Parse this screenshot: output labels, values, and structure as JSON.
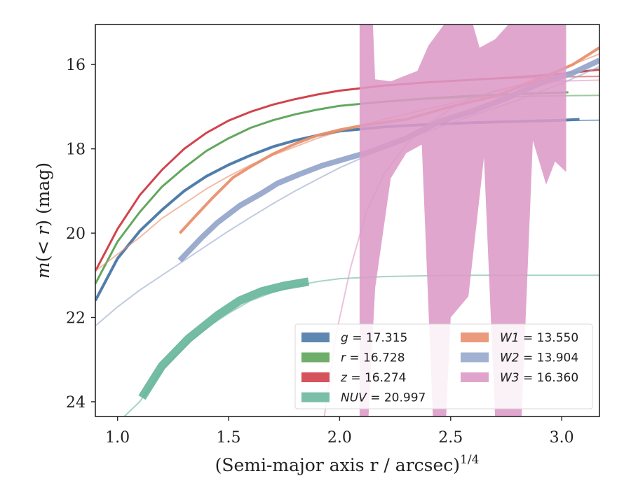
{
  "chart_data": {
    "type": "line",
    "title": "",
    "xlabel": "(Semi-major axis r / arcsec)",
    "xlabel_exponent": "1/4",
    "ylabel_prefix": "m(",
    "ylabel_math": "< r",
    "ylabel_suffix": ") (mag)",
    "xlim": [
      0.9,
      3.17
    ],
    "ylim": [
      24.35,
      15.05
    ],
    "y_inverted": true,
    "grid": false,
    "legend_placement": "lower-right",
    "x_ticks": [
      {
        "value": 1.0,
        "label": "1.0"
      },
      {
        "value": 1.5,
        "label": "1.5"
      },
      {
        "value": 2.0,
        "label": "2.0"
      },
      {
        "value": 2.5,
        "label": "2.5"
      },
      {
        "value": 3.0,
        "label": "3.0"
      }
    ],
    "y_ticks": [
      {
        "value": 16,
        "label": "16"
      },
      {
        "value": 18,
        "label": "18"
      },
      {
        "value": 20,
        "label": "20"
      },
      {
        "value": 22,
        "label": "22"
      },
      {
        "value": 24,
        "label": "24"
      }
    ],
    "legend_columns": [
      [
        "g",
        "r",
        "z",
        "NUV"
      ],
      [
        "W1",
        "W2",
        "W3"
      ]
    ],
    "series": [
      {
        "key": "g",
        "band": "g",
        "value": "17.315",
        "color": "#4c7aa8",
        "model": [
          [
            0.9,
            21.6
          ],
          [
            1.0,
            20.6
          ],
          [
            1.1,
            19.95
          ],
          [
            1.2,
            19.45
          ],
          [
            1.3,
            19.0
          ],
          [
            1.4,
            18.65
          ],
          [
            1.5,
            18.38
          ],
          [
            1.6,
            18.15
          ],
          [
            1.7,
            17.95
          ],
          [
            1.8,
            17.8
          ],
          [
            1.9,
            17.68
          ],
          [
            2.0,
            17.58
          ],
          [
            2.2,
            17.48
          ],
          [
            2.4,
            17.42
          ],
          [
            2.6,
            17.38
          ],
          [
            2.8,
            17.35
          ],
          [
            3.0,
            17.33
          ],
          [
            3.17,
            17.32
          ]
        ],
        "data_band": [
          [
            0.9,
            21.6
          ],
          [
            1.0,
            20.6
          ],
          [
            1.1,
            19.95
          ],
          [
            1.2,
            19.45
          ],
          [
            1.3,
            19.0
          ],
          [
            1.4,
            18.65
          ],
          [
            1.5,
            18.38
          ],
          [
            1.6,
            18.15
          ],
          [
            1.7,
            17.95
          ],
          [
            1.8,
            17.8
          ],
          [
            1.9,
            17.68
          ],
          [
            2.0,
            17.58
          ],
          [
            2.2,
            17.48
          ],
          [
            2.4,
            17.42
          ],
          [
            2.6,
            17.38
          ],
          [
            2.8,
            17.35
          ],
          [
            3.0,
            17.32
          ],
          [
            3.08,
            17.3
          ]
        ],
        "data_width": 4
      },
      {
        "key": "r",
        "band": "r",
        "value": "16.728",
        "color": "#5fa55a",
        "model": [
          [
            0.9,
            21.2
          ],
          [
            1.0,
            20.2
          ],
          [
            1.1,
            19.5
          ],
          [
            1.2,
            18.9
          ],
          [
            1.3,
            18.45
          ],
          [
            1.4,
            18.05
          ],
          [
            1.5,
            17.75
          ],
          [
            1.6,
            17.5
          ],
          [
            1.7,
            17.32
          ],
          [
            1.8,
            17.18
          ],
          [
            1.9,
            17.07
          ],
          [
            2.0,
            16.98
          ],
          [
            2.2,
            16.88
          ],
          [
            2.4,
            16.82
          ],
          [
            2.6,
            16.78
          ],
          [
            2.8,
            16.76
          ],
          [
            3.0,
            16.74
          ],
          [
            3.17,
            16.73
          ]
        ],
        "data_band": [
          [
            0.9,
            21.2
          ],
          [
            1.0,
            20.2
          ],
          [
            1.1,
            19.5
          ],
          [
            1.2,
            18.9
          ],
          [
            1.3,
            18.45
          ],
          [
            1.4,
            18.05
          ],
          [
            1.5,
            17.75
          ],
          [
            1.6,
            17.5
          ],
          [
            1.7,
            17.32
          ],
          [
            1.8,
            17.18
          ],
          [
            1.9,
            17.07
          ],
          [
            2.0,
            16.98
          ],
          [
            2.2,
            16.88
          ],
          [
            2.4,
            16.8
          ],
          [
            2.6,
            16.74
          ],
          [
            2.8,
            16.7
          ],
          [
            3.03,
            16.66
          ]
        ],
        "data_width": 3
      },
      {
        "key": "z",
        "band": "z",
        "value": "16.274",
        "color": "#d0404a",
        "model": [
          [
            0.9,
            20.9
          ],
          [
            1.0,
            19.9
          ],
          [
            1.1,
            19.1
          ],
          [
            1.2,
            18.5
          ],
          [
            1.3,
            18.0
          ],
          [
            1.4,
            17.62
          ],
          [
            1.5,
            17.33
          ],
          [
            1.6,
            17.12
          ],
          [
            1.7,
            16.95
          ],
          [
            1.8,
            16.82
          ],
          [
            1.9,
            16.71
          ],
          [
            2.0,
            16.62
          ],
          [
            2.2,
            16.5
          ],
          [
            2.4,
            16.42
          ],
          [
            2.6,
            16.36
          ],
          [
            2.8,
            16.32
          ],
          [
            3.0,
            16.29
          ],
          [
            3.17,
            16.28
          ]
        ],
        "data_band": [
          [
            0.9,
            20.9
          ],
          [
            1.0,
            19.9
          ],
          [
            1.1,
            19.1
          ],
          [
            1.2,
            18.5
          ],
          [
            1.3,
            18.0
          ],
          [
            1.4,
            17.62
          ],
          [
            1.5,
            17.33
          ],
          [
            1.6,
            17.12
          ],
          [
            1.7,
            16.95
          ],
          [
            1.8,
            16.82
          ],
          [
            1.9,
            16.71
          ],
          [
            2.0,
            16.62
          ],
          [
            2.2,
            16.5
          ],
          [
            2.4,
            16.42
          ],
          [
            2.6,
            16.36
          ],
          [
            2.8,
            16.3
          ],
          [
            3.0,
            16.22
          ],
          [
            3.17,
            16.12
          ]
        ],
        "data_width": 3
      },
      {
        "key": "NUV",
        "band": "NUV",
        "value": "20.997",
        "color": "#6db89e",
        "model": [
          [
            1.02,
            24.4
          ],
          [
            1.1,
            24.0
          ],
          [
            1.2,
            23.25
          ],
          [
            1.3,
            22.7
          ],
          [
            1.4,
            22.25
          ],
          [
            1.5,
            21.9
          ],
          [
            1.6,
            21.6
          ],
          [
            1.7,
            21.4
          ],
          [
            1.8,
            21.25
          ],
          [
            1.9,
            21.15
          ],
          [
            2.0,
            21.08
          ],
          [
            2.2,
            21.03
          ],
          [
            2.4,
            21.01
          ],
          [
            2.6,
            21.0
          ],
          [
            3.17,
            21.0
          ]
        ],
        "data_band": [
          [
            1.11,
            23.9
          ],
          [
            1.2,
            23.15
          ],
          [
            1.32,
            22.5
          ],
          [
            1.45,
            21.95
          ],
          [
            1.55,
            21.6
          ],
          [
            1.65,
            21.38
          ],
          [
            1.75,
            21.25
          ],
          [
            1.86,
            21.15
          ]
        ],
        "data_width": 12
      },
      {
        "key": "W1",
        "band": "W1",
        "value": "13.550",
        "color": "#e9906d",
        "model": [
          [
            0.9,
            20.9
          ],
          [
            1.0,
            20.5
          ],
          [
            1.1,
            20.1
          ],
          [
            1.2,
            19.65
          ],
          [
            1.3,
            19.3
          ],
          [
            1.4,
            18.95
          ],
          [
            1.5,
            18.65
          ],
          [
            1.6,
            18.38
          ],
          [
            1.7,
            18.15
          ],
          [
            1.8,
            17.95
          ],
          [
            1.9,
            17.75
          ],
          [
            2.0,
            17.58
          ],
          [
            2.2,
            17.3
          ],
          [
            2.4,
            17.05
          ],
          [
            2.6,
            16.8
          ],
          [
            2.8,
            16.5
          ],
          [
            3.0,
            16.1
          ],
          [
            3.17,
            15.75
          ]
        ],
        "data_band": [
          [
            1.28,
            20.0
          ],
          [
            1.35,
            19.6
          ],
          [
            1.43,
            19.15
          ],
          [
            1.52,
            18.68
          ],
          [
            1.6,
            18.42
          ],
          [
            1.7,
            18.12
          ],
          [
            1.8,
            17.88
          ],
          [
            1.9,
            17.68
          ],
          [
            2.0,
            17.55
          ],
          [
            2.1,
            17.45
          ],
          [
            2.3,
            17.3
          ],
          [
            2.5,
            17.0
          ],
          [
            2.7,
            16.75
          ],
          [
            2.9,
            16.35
          ],
          [
            3.05,
            16.0
          ],
          [
            3.17,
            15.6
          ]
        ],
        "data_width": 4
      },
      {
        "key": "W2",
        "band": "W2",
        "value": "13.904",
        "color": "#97a8cc",
        "model": [
          [
            0.9,
            22.2
          ],
          [
            1.0,
            21.75
          ],
          [
            1.1,
            21.35
          ],
          [
            1.2,
            21.0
          ],
          [
            1.3,
            20.65
          ],
          [
            1.4,
            20.3
          ],
          [
            1.5,
            19.95
          ],
          [
            1.6,
            19.62
          ],
          [
            1.7,
            19.3
          ],
          [
            1.8,
            19.0
          ],
          [
            1.9,
            18.72
          ],
          [
            2.0,
            18.45
          ],
          [
            2.2,
            17.98
          ],
          [
            2.4,
            17.58
          ],
          [
            2.6,
            17.2
          ],
          [
            2.8,
            16.85
          ],
          [
            3.0,
            16.45
          ],
          [
            3.17,
            16.05
          ]
        ],
        "data_band": [
          [
            1.28,
            20.65
          ],
          [
            1.38,
            20.1
          ],
          [
            1.45,
            19.75
          ],
          [
            1.55,
            19.35
          ],
          [
            1.65,
            19.05
          ],
          [
            1.72,
            18.82
          ],
          [
            1.82,
            18.6
          ],
          [
            1.92,
            18.4
          ],
          [
            2.05,
            18.2
          ],
          [
            2.15,
            18.05
          ],
          [
            2.3,
            17.75
          ],
          [
            2.45,
            17.35
          ],
          [
            2.6,
            17.1
          ],
          [
            2.75,
            16.8
          ],
          [
            2.9,
            16.45
          ],
          [
            3.05,
            16.2
          ],
          [
            3.17,
            15.9
          ]
        ],
        "data_width": 8
      },
      {
        "key": "W3",
        "band": "W3",
        "value": "16.360",
        "color": "#dd9ac7",
        "model": [
          [
            1.93,
            24.4
          ],
          [
            1.98,
            22.5
          ],
          [
            2.05,
            20.8
          ],
          [
            2.12,
            19.5
          ],
          [
            2.2,
            18.6
          ],
          [
            2.3,
            17.9
          ],
          [
            2.4,
            17.4
          ],
          [
            2.5,
            17.05
          ],
          [
            2.6,
            16.8
          ],
          [
            2.7,
            16.62
          ],
          [
            2.8,
            16.5
          ],
          [
            2.9,
            16.43
          ],
          [
            3.0,
            16.39
          ],
          [
            3.17,
            16.37
          ]
        ],
        "fill_upper": [
          [
            2.09,
            15.05
          ],
          [
            2.15,
            15.05
          ],
          [
            2.16,
            16.35
          ],
          [
            2.23,
            16.4
          ],
          [
            2.35,
            16.15
          ],
          [
            2.4,
            15.55
          ],
          [
            2.47,
            15.05
          ],
          [
            2.6,
            15.05
          ],
          [
            2.63,
            15.6
          ],
          [
            2.7,
            15.4
          ],
          [
            2.76,
            15.05
          ],
          [
            3.02,
            15.05
          ]
        ],
        "fill_lower": [
          [
            2.09,
            24.35
          ],
          [
            2.13,
            24.35
          ],
          [
            2.16,
            21.3
          ],
          [
            2.23,
            18.7
          ],
          [
            2.3,
            18.1
          ],
          [
            2.37,
            17.9
          ],
          [
            2.42,
            24.35
          ],
          [
            2.48,
            24.35
          ],
          [
            2.5,
            22.0
          ],
          [
            2.58,
            21.5
          ],
          [
            2.65,
            18.2
          ],
          [
            2.7,
            24.35
          ],
          [
            2.82,
            24.35
          ],
          [
            2.87,
            17.8
          ],
          [
            2.93,
            18.85
          ],
          [
            2.97,
            18.3
          ],
          [
            3.02,
            18.55
          ]
        ],
        "data_width": 0
      }
    ],
    "legend": [
      {
        "key": "g",
        "band": "g",
        "value": "17.315",
        "color": "#4c7aa8"
      },
      {
        "key": "r",
        "band": "r",
        "value": "16.728",
        "color": "#5fa55a"
      },
      {
        "key": "z",
        "band": "z",
        "value": "16.274",
        "color": "#d0404a"
      },
      {
        "key": "NUV",
        "band": "NUV",
        "value": "20.997",
        "color": "#6db89e"
      },
      {
        "key": "W1",
        "band": "W1",
        "value": "13.550",
        "color": "#e9906d"
      },
      {
        "key": "W2",
        "band": "W2",
        "value": "13.904",
        "color": "#97a8cc"
      },
      {
        "key": "W3",
        "band": "W3",
        "value": "16.360",
        "color": "#dd9ac7"
      }
    ]
  }
}
